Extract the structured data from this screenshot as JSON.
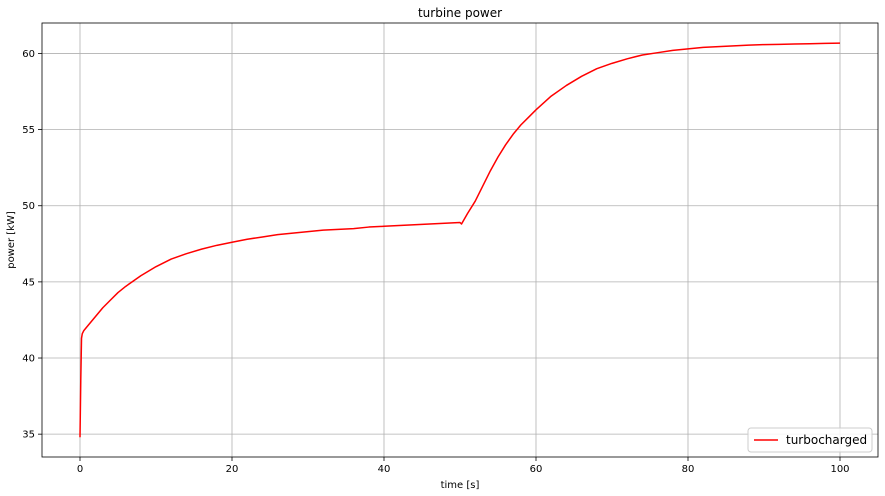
{
  "chart_data": {
    "type": "line",
    "title": "turbine power",
    "xlabel": "time [s]",
    "ylabel": "power [kW]",
    "xlim": [
      -5,
      105
    ],
    "ylim": [
      33.5,
      62
    ],
    "xticks": [
      0,
      20,
      40,
      60,
      80,
      100
    ],
    "yticks": [
      35,
      40,
      45,
      50,
      55,
      60
    ],
    "grid": true,
    "legend_position": "lower-right",
    "series": [
      {
        "name": "turbocharged",
        "color": "#ff0000",
        "x": [
          0,
          0.1,
          0.2,
          0.3,
          0.5,
          1,
          2,
          3,
          4,
          5,
          6,
          8,
          10,
          12,
          14,
          16,
          18,
          20,
          22,
          24,
          26,
          28,
          30,
          32,
          34,
          36,
          38,
          40,
          42,
          44,
          46,
          48,
          50,
          50.2,
          51,
          52,
          53,
          54,
          55,
          56,
          57,
          58,
          59,
          60,
          62,
          64,
          66,
          68,
          70,
          72,
          74,
          76,
          78,
          80,
          82,
          84,
          86,
          88,
          90,
          92,
          94,
          96,
          98,
          100
        ],
        "y": [
          34.8,
          38.5,
          41.3,
          41.6,
          41.8,
          42.1,
          42.7,
          43.3,
          43.8,
          44.3,
          44.7,
          45.4,
          46.0,
          46.5,
          46.85,
          47.15,
          47.4,
          47.6,
          47.8,
          47.95,
          48.1,
          48.2,
          48.3,
          48.4,
          48.45,
          48.5,
          48.6,
          48.65,
          48.7,
          48.75,
          48.8,
          48.85,
          48.9,
          48.8,
          49.5,
          50.3,
          51.3,
          52.3,
          53.2,
          54.0,
          54.7,
          55.3,
          55.8,
          56.3,
          57.2,
          57.9,
          58.5,
          59.0,
          59.35,
          59.65,
          59.9,
          60.05,
          60.2,
          60.3,
          60.4,
          60.45,
          60.5,
          60.55,
          60.58,
          60.6,
          60.62,
          60.64,
          60.66,
          60.68
        ]
      }
    ]
  }
}
